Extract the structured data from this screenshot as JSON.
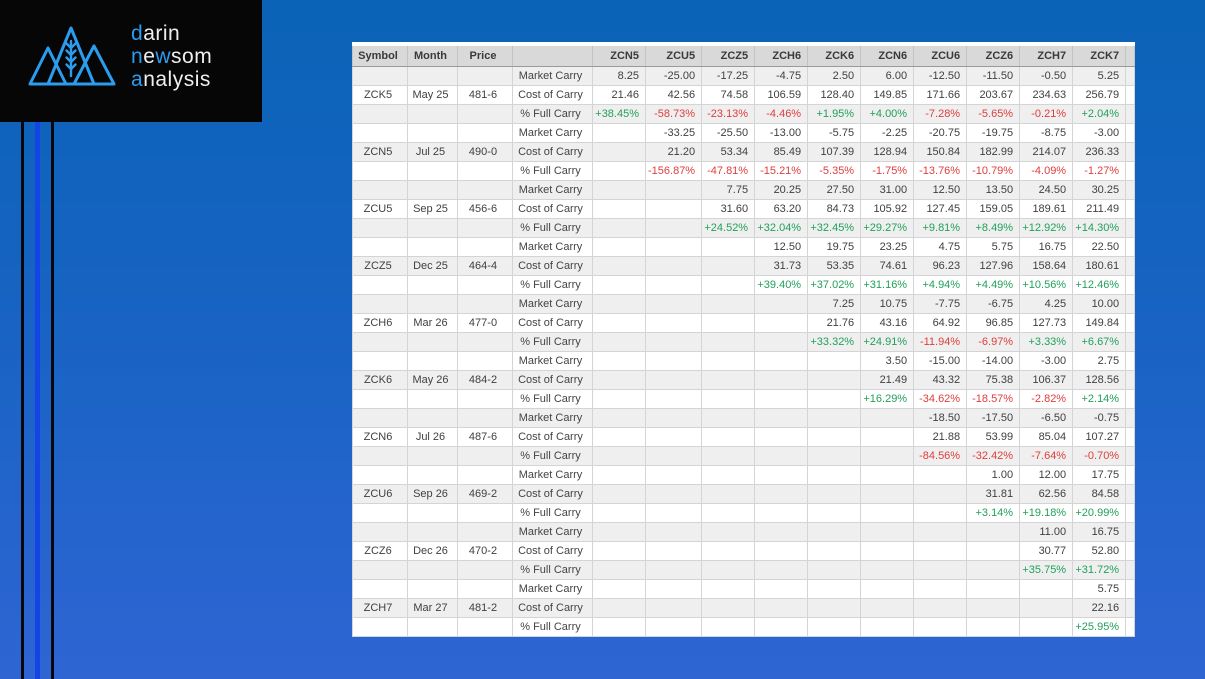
{
  "colors": {
    "accent_blue": "#2b9df0",
    "background_top": "#0a63b6",
    "background_bottom": "#2e65d3",
    "positive_green": "#21a15a",
    "negative_red": "#e03d3d",
    "stripe_gray": "#efefef",
    "header_gray": "#d9d9d9",
    "line_blue": "#1443e6"
  },
  "logo": {
    "line1_blue": "d",
    "line1_rest": "arin",
    "line2_blue1": "n",
    "line2_mid": "e",
    "line2_blue2": "w",
    "line2_rest": "som",
    "line3_blue": "a",
    "line3_rest": "nalysis"
  },
  "table": {
    "headers": [
      "Symbol",
      "Month",
      "Price",
      "",
      "ZCN5",
      "ZCU5",
      "ZCZ5",
      "ZCH6",
      "ZCK6",
      "ZCN6",
      "ZCU6",
      "ZCZ6",
      "ZCH7",
      "ZCK7",
      ""
    ],
    "row_labels": {
      "market": "Market Carry",
      "cost": "Cost of Carry",
      "pct": "% Full Carry"
    },
    "groups": [
      {
        "symbol": "ZCK5",
        "month": "May 25",
        "price": "481-6",
        "market": [
          "8.25",
          "-25.00",
          "-17.25",
          "-4.75",
          "2.50",
          "6.00",
          "-12.50",
          "-11.50",
          "-0.50",
          "5.25"
        ],
        "cost": [
          "21.46",
          "42.56",
          "74.58",
          "106.59",
          "128.40",
          "149.85",
          "171.66",
          "203.67",
          "234.63",
          "256.79"
        ],
        "pct": [
          "+38.45%",
          "-58.73%",
          "-23.13%",
          "-4.46%",
          "+1.95%",
          "+4.00%",
          "-7.28%",
          "-5.65%",
          "-0.21%",
          "+2.04%"
        ]
      },
      {
        "symbol": "ZCN5",
        "month": "Jul 25",
        "price": "490-0",
        "market": [
          "",
          "-33.25",
          "-25.50",
          "-13.00",
          "-5.75",
          "-2.25",
          "-20.75",
          "-19.75",
          "-8.75",
          "-3.00"
        ],
        "cost": [
          "",
          "21.20",
          "53.34",
          "85.49",
          "107.39",
          "128.94",
          "150.84",
          "182.99",
          "214.07",
          "236.33"
        ],
        "pct": [
          "",
          "-156.87%",
          "-47.81%",
          "-15.21%",
          "-5.35%",
          "-1.75%",
          "-13.76%",
          "-10.79%",
          "-4.09%",
          "-1.27%"
        ]
      },
      {
        "symbol": "ZCU5",
        "month": "Sep 25",
        "price": "456-6",
        "market": [
          "",
          "",
          "7.75",
          "20.25",
          "27.50",
          "31.00",
          "12.50",
          "13.50",
          "24.50",
          "30.25"
        ],
        "cost": [
          "",
          "",
          "31.60",
          "63.20",
          "84.73",
          "105.92",
          "127.45",
          "159.05",
          "189.61",
          "211.49"
        ],
        "pct": [
          "",
          "",
          "+24.52%",
          "+32.04%",
          "+32.45%",
          "+29.27%",
          "+9.81%",
          "+8.49%",
          "+12.92%",
          "+14.30%"
        ]
      },
      {
        "symbol": "ZCZ5",
        "month": "Dec 25",
        "price": "464-4",
        "market": [
          "",
          "",
          "",
          "12.50",
          "19.75",
          "23.25",
          "4.75",
          "5.75",
          "16.75",
          "22.50"
        ],
        "cost": [
          "",
          "",
          "",
          "31.73",
          "53.35",
          "74.61",
          "96.23",
          "127.96",
          "158.64",
          "180.61"
        ],
        "pct": [
          "",
          "",
          "",
          "+39.40%",
          "+37.02%",
          "+31.16%",
          "+4.94%",
          "+4.49%",
          "+10.56%",
          "+12.46%"
        ]
      },
      {
        "symbol": "ZCH6",
        "month": "Mar 26",
        "price": "477-0",
        "market": [
          "",
          "",
          "",
          "",
          "7.25",
          "10.75",
          "-7.75",
          "-6.75",
          "4.25",
          "10.00"
        ],
        "cost": [
          "",
          "",
          "",
          "",
          "21.76",
          "43.16",
          "64.92",
          "96.85",
          "127.73",
          "149.84"
        ],
        "pct": [
          "",
          "",
          "",
          "",
          "+33.32%",
          "+24.91%",
          "-11.94%",
          "-6.97%",
          "+3.33%",
          "+6.67%"
        ]
      },
      {
        "symbol": "ZCK6",
        "month": "May 26",
        "price": "484-2",
        "market": [
          "",
          "",
          "",
          "",
          "",
          "3.50",
          "-15.00",
          "-14.00",
          "-3.00",
          "2.75"
        ],
        "cost": [
          "",
          "",
          "",
          "",
          "",
          "21.49",
          "43.32",
          "75.38",
          "106.37",
          "128.56"
        ],
        "pct": [
          "",
          "",
          "",
          "",
          "",
          "+16.29%",
          "-34.62%",
          "-18.57%",
          "-2.82%",
          "+2.14%"
        ]
      },
      {
        "symbol": "ZCN6",
        "month": "Jul 26",
        "price": "487-6",
        "market": [
          "",
          "",
          "",
          "",
          "",
          "",
          "-18.50",
          "-17.50",
          "-6.50",
          "-0.75"
        ],
        "cost": [
          "",
          "",
          "",
          "",
          "",
          "",
          "21.88",
          "53.99",
          "85.04",
          "107.27"
        ],
        "pct": [
          "",
          "",
          "",
          "",
          "",
          "",
          "-84.56%",
          "-32.42%",
          "-7.64%",
          "-0.70%"
        ]
      },
      {
        "symbol": "ZCU6",
        "month": "Sep 26",
        "price": "469-2",
        "market": [
          "",
          "",
          "",
          "",
          "",
          "",
          "",
          "1.00",
          "12.00",
          "17.75"
        ],
        "cost": [
          "",
          "",
          "",
          "",
          "",
          "",
          "",
          "31.81",
          "62.56",
          "84.58"
        ],
        "pct": [
          "",
          "",
          "",
          "",
          "",
          "",
          "",
          "+3.14%",
          "+19.18%",
          "+20.99%"
        ]
      },
      {
        "symbol": "ZCZ6",
        "month": "Dec 26",
        "price": "470-2",
        "market": [
          "",
          "",
          "",
          "",
          "",
          "",
          "",
          "",
          "11.00",
          "16.75"
        ],
        "cost": [
          "",
          "",
          "",
          "",
          "",
          "",
          "",
          "",
          "30.77",
          "52.80"
        ],
        "pct": [
          "",
          "",
          "",
          "",
          "",
          "",
          "",
          "",
          "+35.75%",
          "+31.72%"
        ]
      },
      {
        "symbol": "ZCH7",
        "month": "Mar 27",
        "price": "481-2",
        "market": [
          "",
          "",
          "",
          "",
          "",
          "",
          "",
          "",
          "",
          "5.75"
        ],
        "cost": [
          "",
          "",
          "",
          "",
          "",
          "",
          "",
          "",
          "",
          "22.16"
        ],
        "pct": [
          "",
          "",
          "",
          "",
          "",
          "",
          "",
          "",
          "",
          "+25.95%"
        ]
      }
    ]
  }
}
